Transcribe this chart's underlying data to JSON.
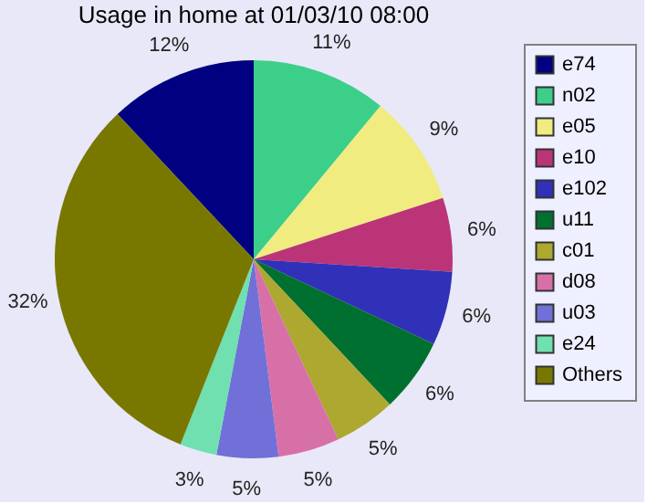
{
  "chart_data": {
    "type": "pie",
    "title": "Usage in home at 01/03/10 08:00",
    "categories": [
      "e74",
      "n02",
      "e05",
      "e10",
      "e102",
      "u11",
      "c01",
      "d08",
      "u03",
      "e24",
      "Others"
    ],
    "values": [
      12,
      11,
      9,
      6,
      6,
      6,
      5,
      5,
      5,
      3,
      32
    ],
    "value_labels": [
      "12%",
      "11%",
      "9%",
      "6%",
      "6%",
      "6%",
      "5%",
      "5%",
      "5%",
      "3%",
      "32%"
    ],
    "colors": [
      "#000080",
      "#3ccf8a",
      "#f0ec80",
      "#bc3478",
      "#3030b8",
      "#007030",
      "#aca830",
      "#d870a8",
      "#7070d8",
      "#70e0b0",
      "#787800"
    ],
    "legend": "right"
  }
}
